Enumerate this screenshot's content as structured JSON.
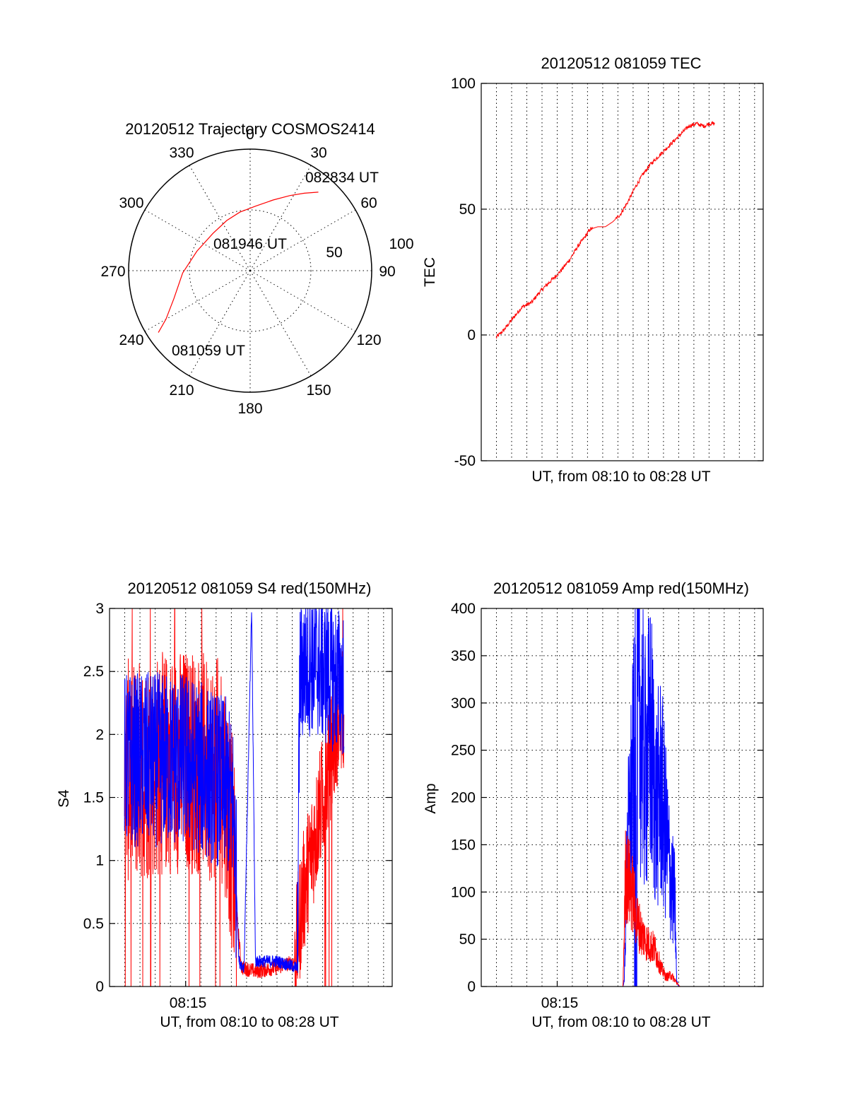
{
  "colors": {
    "red": "#ff0000",
    "blue": "#0000ff",
    "axis": "#000000"
  },
  "chart_data": [
    {
      "id": "trajectory",
      "type": "polar",
      "title": "20120512 Trajectory COSMOS2414",
      "azimuth_labels": [
        "0",
        "30",
        "60",
        "90",
        "120",
        "150",
        "180",
        "210",
        "240",
        "270",
        "300",
        "330"
      ],
      "ring_labels": [
        "50",
        "100"
      ],
      "rlim": [
        0,
        100
      ],
      "grid": true,
      "annotations": [
        "082834 UT",
        "081946 UT",
        "081059 UT"
      ],
      "series": [
        {
          "color": "red",
          "points": [
            {
              "az": 236,
              "el": 8
            },
            {
              "az": 240,
              "el": 18
            },
            {
              "az": 250,
              "el": 30
            },
            {
              "az": 268,
              "el": 40
            },
            {
              "az": 290,
              "el": 48
            },
            {
              "az": 315,
              "el": 51
            },
            {
              "az": 335,
              "el": 49
            },
            {
              "az": 350,
              "el": 46
            },
            {
              "az": 5,
              "el": 42
            },
            {
              "az": 18,
              "el": 35
            },
            {
              "az": 28,
              "el": 27
            },
            {
              "az": 35,
              "el": 20
            },
            {
              "az": 41,
              "el": 13
            }
          ]
        }
      ]
    },
    {
      "id": "tec",
      "type": "line",
      "title": "20120512 081059 TEC",
      "xlabel": "UT, from 08:10 to 08:28 UT",
      "ylabel": "TEC",
      "ylim": [
        -50,
        100
      ],
      "yticks": [
        "-50",
        "0",
        "50",
        "100"
      ],
      "xrange_seconds": [
        600,
        1714
      ],
      "grid": true,
      "series": [
        {
          "color": "red",
          "points": [
            [
              659,
              -1
            ],
            [
              690,
              2
            ],
            [
              720,
              6
            ],
            [
              760,
              11
            ],
            [
              800,
              13
            ],
            [
              830,
              17
            ],
            [
              870,
              21
            ],
            [
              910,
              25
            ],
            [
              950,
              30
            ],
            [
              980,
              35
            ],
            [
              1010,
              39
            ],
            [
              1030,
              42
            ],
            [
              1060,
              43
            ],
            [
              1090,
              43
            ],
            [
              1120,
              45
            ],
            [
              1150,
              48
            ],
            [
              1180,
              53
            ],
            [
              1210,
              59
            ],
            [
              1240,
              64
            ],
            [
              1270,
              68
            ],
            [
              1300,
              71
            ],
            [
              1330,
              74
            ],
            [
              1360,
              77
            ],
            [
              1390,
              80
            ],
            [
              1420,
              83
            ],
            [
              1450,
              84
            ],
            [
              1480,
              83
            ],
            [
              1500,
              84
            ],
            [
              1524,
              84
            ]
          ]
        }
      ]
    },
    {
      "id": "s4",
      "type": "line",
      "title": "20120512 081059 S4 red(150MHz)",
      "xlabel": "UT, from 08:10 to 08:28 UT",
      "ylabel": "S4",
      "ylim": [
        0,
        3
      ],
      "yticks": [
        "0",
        "0.5",
        "1",
        "1.5",
        "2",
        "2.5",
        "3"
      ],
      "xticks": [
        "08:15"
      ],
      "xrange_seconds": [
        600,
        1714
      ],
      "grid": true,
      "series": [
        {
          "color": "red",
          "segments": [
            [
              [
                659,
                1.7
              ],
              [
                900,
                1.8
              ],
              [
                1050,
                1.7
              ],
              [
                1080,
                1.2
              ],
              [
                1100,
                0.6
              ],
              [
                1120,
                0.15
              ],
              [
                1180,
                0.12
              ],
              [
                1260,
                0.15
              ],
              [
                1330,
                0.2
              ],
              [
                1360,
                0.7
              ],
              [
                1400,
                1.1
              ],
              [
                1450,
                1.6
              ],
              [
                1500,
                2.1
              ],
              [
                1524,
                2.2
              ]
            ]
          ],
          "band": {
            "x_from": 659,
            "x_to": 1524,
            "lo": 0.0,
            "hi": 3.0
          }
        },
        {
          "color": "blue",
          "segments": [
            [
              [
                659,
                1.8
              ],
              [
                900,
                1.8
              ],
              [
                1060,
                1.6
              ],
              [
                1090,
                1.4
              ],
              [
                1110,
                0.2
              ],
              [
                1130,
                0.15
              ],
              [
                1160,
                3.0
              ],
              [
                1175,
                0.2
              ],
              [
                1260,
                0.2
              ],
              [
                1340,
                0.15
              ],
              [
                1350,
                2.5
              ],
              [
                1400,
                2.6
              ],
              [
                1450,
                2.5
              ],
              [
                1524,
                2.4
              ]
            ]
          ]
        }
      ]
    },
    {
      "id": "amp",
      "type": "line",
      "title": "20120512 081059 Amp red(150MHz)",
      "xlabel": "UT, from 08:10 to 08:28 UT",
      "ylabel": "Amp",
      "ylim": [
        0,
        400
      ],
      "yticks": [
        "0",
        "50",
        "100",
        "150",
        "200",
        "250",
        "300",
        "350",
        "400"
      ],
      "xticks": [
        "08:15"
      ],
      "xrange_seconds": [
        600,
        1714
      ],
      "grid": true,
      "series": [
        {
          "color": "blue",
          "points": [
            [
              659,
              0
            ],
            [
              1130,
              0
            ],
            [
              1160,
              0
            ],
            [
              1165,
              5
            ],
            [
              1175,
              130
            ],
            [
              1190,
              190
            ],
            [
              1205,
              240
            ],
            [
              1225,
              300
            ],
            [
              1245,
              230
            ],
            [
              1270,
              260
            ],
            [
              1290,
              190
            ],
            [
              1310,
              210
            ],
            [
              1330,
              160
            ],
            [
              1350,
              110
            ],
            [
              1365,
              90
            ],
            [
              1372,
              5
            ],
            [
              1380,
              0
            ],
            [
              1524,
              0
            ]
          ]
        },
        {
          "color": "red",
          "points": [
            [
              659,
              0
            ],
            [
              1160,
              0
            ],
            [
              1170,
              120
            ],
            [
              1185,
              110
            ],
            [
              1200,
              95
            ],
            [
              1215,
              70
            ],
            [
              1235,
              55
            ],
            [
              1260,
              45
            ],
            [
              1285,
              40
            ],
            [
              1310,
              20
            ],
            [
              1330,
              10
            ],
            [
              1350,
              12
            ],
            [
              1370,
              5
            ],
            [
              1385,
              0
            ],
            [
              1524,
              0
            ]
          ]
        }
      ]
    }
  ]
}
